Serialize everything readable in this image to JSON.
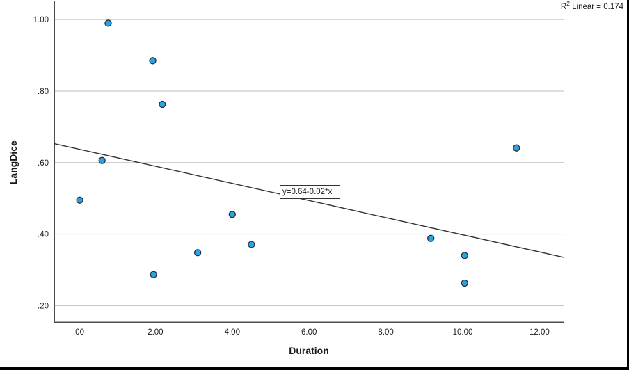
{
  "figure": {
    "background": "#ffffff",
    "frame_border_color": "#000000"
  },
  "annotation": {
    "r_prefix": "R",
    "r_sup": "2",
    "r_rest": " Linear = 0.174"
  },
  "chart_data": {
    "type": "scatter",
    "title": "",
    "xlabel": "Duration",
    "ylabel": "LangDice",
    "x_range": [
      -0.634,
      12.627
    ],
    "y_range": [
      0.153,
      1.051
    ],
    "x_ticks": [
      {
        "v": 0,
        "label": ".00"
      },
      {
        "v": 2,
        "label": "2.00"
      },
      {
        "v": 4,
        "label": "4.00"
      },
      {
        "v": 6,
        "label": "6.00"
      },
      {
        "v": 8,
        "label": "8.00"
      },
      {
        "v": 10,
        "label": "10.00"
      },
      {
        "v": 12,
        "label": "12.00"
      }
    ],
    "y_ticks": [
      {
        "v": 0.2,
        "label": ".20"
      },
      {
        "v": 0.4,
        "label": ".40"
      },
      {
        "v": 0.6,
        "label": ".60"
      },
      {
        "v": 0.8,
        "label": ".80"
      },
      {
        "v": 1.0,
        "label": "1.00"
      }
    ],
    "grid": "horizontal-only",
    "legend": "none",
    "points": [
      {
        "x": 0.77,
        "y": 0.99
      },
      {
        "x": 1.93,
        "y": 0.885
      },
      {
        "x": 2.18,
        "y": 0.763
      },
      {
        "x": 0.61,
        "y": 0.606
      },
      {
        "x": 0.03,
        "y": 0.495
      },
      {
        "x": 4.0,
        "y": 0.455
      },
      {
        "x": 3.1,
        "y": 0.348
      },
      {
        "x": 4.5,
        "y": 0.371
      },
      {
        "x": 1.95,
        "y": 0.287
      },
      {
        "x": 11.4,
        "y": 0.641
      },
      {
        "x": 9.17,
        "y": 0.388
      },
      {
        "x": 10.05,
        "y": 0.34
      },
      {
        "x": 10.05,
        "y": 0.263
      }
    ],
    "trend_line": {
      "equation": "y=0.64-0.02*x",
      "intercept": 0.64,
      "slope": -0.02,
      "x_start": -0.634,
      "y_start": 0.653,
      "x_end": 12.627,
      "y_end": 0.335
    },
    "r_squared": 0.174,
    "colors": {
      "point_fill": "#29a3e8",
      "point_stroke": "#2b2b2b",
      "grid": "#c9c9c9",
      "axis": "#4d4d4d",
      "trend": "#333333",
      "text": "#1a1a1a"
    }
  }
}
